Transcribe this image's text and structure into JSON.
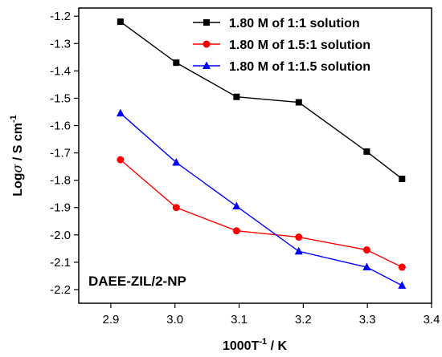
{
  "chart_data": {
    "type": "line",
    "xlabel_main": "1000T",
    "xlabel_sup": "-1",
    "xlabel_rest": " / K",
    "ylabel_main": "Log",
    "ylabel_sigma": "σ",
    "ylabel_rest": " / S cm",
    "ylabel_sup": "-1",
    "xlim": [
      2.85,
      3.4
    ],
    "ylim": [
      -2.25,
      -1.17
    ],
    "xticks": [
      2.9,
      3.0,
      3.1,
      3.2,
      3.3,
      3.4
    ],
    "xtick_labels": [
      "2.9",
      "3.0",
      "3.1",
      "3.2",
      "3.3",
      "3.4"
    ],
    "yticks": [
      -1.2,
      -1.3,
      -1.4,
      -1.5,
      -1.6,
      -1.7,
      -1.8,
      -1.9,
      -2.0,
      -2.1,
      -2.2
    ],
    "ytick_labels": [
      "-1.2",
      "-1.3",
      "-1.4",
      "-1.5",
      "-1.6",
      "-1.7",
      "-1.8",
      "-1.9",
      "-2.0",
      "-2.1",
      "-2.2"
    ],
    "legend_position": "top-right",
    "grid": false,
    "annotation": "DAEE-ZIL/2-NP",
    "x": [
      2.915,
      3.002,
      3.096,
      3.193,
      3.299,
      3.354
    ],
    "series": [
      {
        "name": "1.80 M of 1:1 solution",
        "color": "#000000",
        "marker": "square",
        "values": [
          -1.22,
          -1.37,
          -1.495,
          -1.515,
          -1.695,
          -1.795
        ]
      },
      {
        "name": "1.80 M of 1.5:1 solution",
        "color": "#ff0000",
        "marker": "circle",
        "values": [
          -1.725,
          -1.9,
          -1.985,
          -2.008,
          -2.055,
          -2.118
        ]
      },
      {
        "name": "1.80 M of 1:1.5 solution",
        "color": "#0000ff",
        "marker": "triangle",
        "values": [
          -1.555,
          -1.735,
          -1.895,
          -2.06,
          -2.118,
          -2.185
        ]
      }
    ]
  }
}
